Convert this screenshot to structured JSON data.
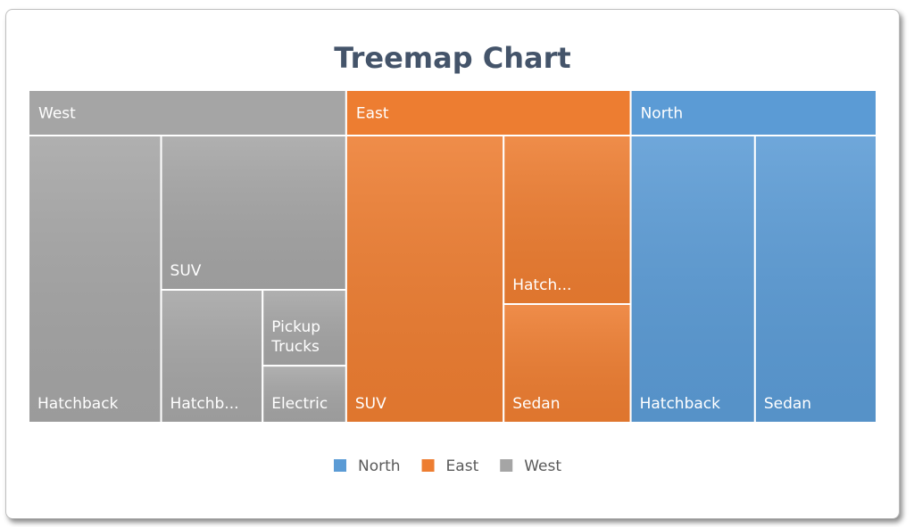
{
  "chart_data": {
    "type": "treemap",
    "title": "Treemap Chart",
    "series": [
      {
        "name": "West",
        "color": "#a5a5a5",
        "categories": [
          "Hatchback",
          "SUV",
          "Hatchb...",
          "Pickup Trucks",
          "Electric"
        ],
        "values": [
          48,
          36,
          17,
          8,
          6
        ]
      },
      {
        "name": "East",
        "color": "#ed7d31",
        "categories": [
          "SUV",
          "Hatch...",
          "Sedan"
        ],
        "values": [
          57,
          27,
          19
        ]
      },
      {
        "name": "North",
        "color": "#5b9bd5",
        "categories": [
          "Hatchback",
          "Sedan"
        ],
        "values": [
          45,
          44
        ]
      }
    ]
  }
}
